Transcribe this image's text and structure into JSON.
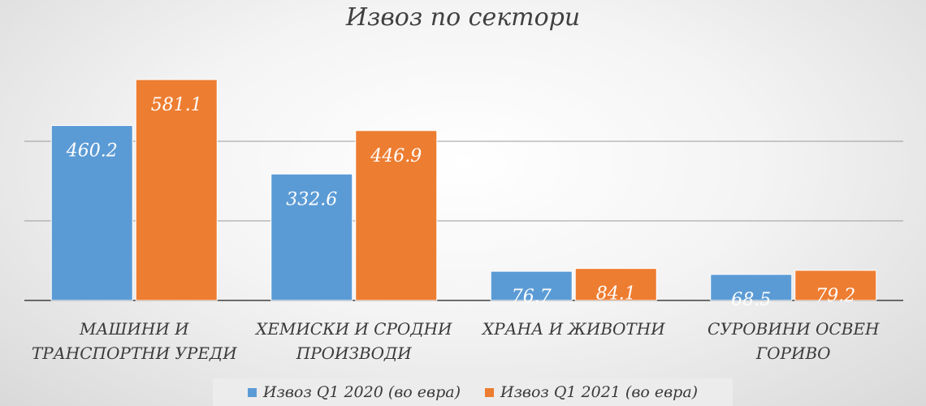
{
  "chart_data": {
    "type": "bar",
    "title": "Извоз по сектори",
    "categories": [
      [
        "МАШИНИ И",
        "ТРАНСПОРТНИ УРЕДИ"
      ],
      [
        "ХЕМИСКИ И СРОДНИ",
        "ПРОИЗВОДИ"
      ],
      [
        "ХРАНА И ЖИВОТНИ"
      ],
      [
        "СУРОВИНИ ОСВЕН",
        "ГОРИВО"
      ]
    ],
    "series": [
      {
        "name": "Извоз Q1 2020 (во евра)",
        "values": [
          460.2,
          332.6,
          76.7,
          68.5
        ],
        "labels": [
          "460.2",
          "332.6",
          "76.7",
          "68.5"
        ],
        "color": "#5b9bd5"
      },
      {
        "name": "Извоз Q1 2021 (во евра)",
        "values": [
          581.1,
          446.9,
          84.1,
          79.2
        ],
        "labels": [
          "581.1",
          "446.9",
          "84.1",
          "79.2"
        ],
        "color": "#ed7d31"
      }
    ],
    "grid": true,
    "legend_position": "bottom"
  }
}
